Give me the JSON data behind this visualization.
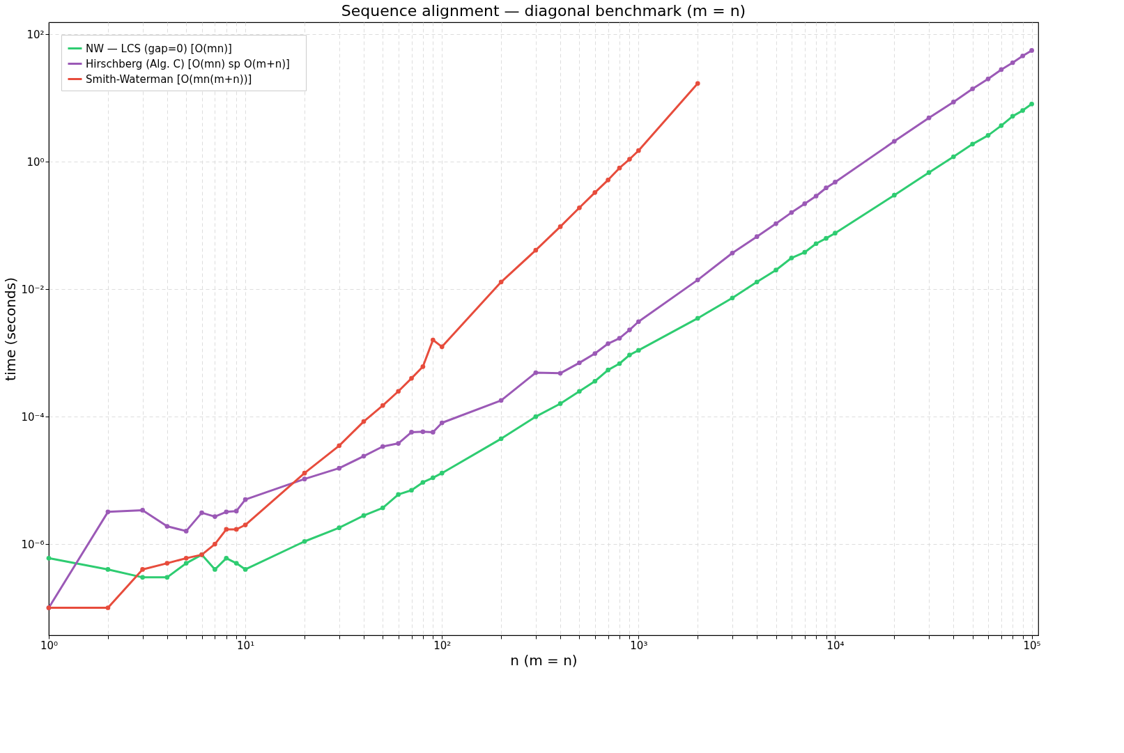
{
  "chart_data": {
    "type": "line",
    "title": "Sequence alignment — diagonal benchmark  (m = n)",
    "xlabel": "n  (m = n)",
    "ylabel": "time (seconds)",
    "log": "xy",
    "grid": true,
    "legend": "top left",
    "marker": "circle",
    "line_style": "solid",
    "xlim": [
      1,
      108000
    ],
    "ylim": [
      3.7e-08,
      155
    ],
    "xticks": [
      {
        "value": 1,
        "label": "10⁰"
      },
      {
        "value": 2,
        "label": null
      },
      {
        "value": 3,
        "label": null
      },
      {
        "value": 4,
        "label": null
      },
      {
        "value": 5,
        "label": null
      },
      {
        "value": 6,
        "label": null
      },
      {
        "value": 7,
        "label": null
      },
      {
        "value": 8,
        "label": null
      },
      {
        "value": 9,
        "label": null
      },
      {
        "value": 10,
        "label": "10¹"
      },
      {
        "value": 20,
        "label": null
      },
      {
        "value": 30,
        "label": null
      },
      {
        "value": 40,
        "label": null
      },
      {
        "value": 50,
        "label": null
      },
      {
        "value": 60,
        "label": null
      },
      {
        "value": 70,
        "label": null
      },
      {
        "value": 80,
        "label": null
      },
      {
        "value": 90,
        "label": null
      },
      {
        "value": 100,
        "label": "10²"
      },
      {
        "value": 200,
        "label": null
      },
      {
        "value": 300,
        "label": null
      },
      {
        "value": 400,
        "label": null
      },
      {
        "value": 500,
        "label": null
      },
      {
        "value": 600,
        "label": null
      },
      {
        "value": 700,
        "label": null
      },
      {
        "value": 800,
        "label": null
      },
      {
        "value": 900,
        "label": null
      },
      {
        "value": 1000,
        "label": "10³"
      },
      {
        "value": 2000,
        "label": null
      },
      {
        "value": 3000,
        "label": null
      },
      {
        "value": 4000,
        "label": null
      },
      {
        "value": 5000,
        "label": null
      },
      {
        "value": 6000,
        "label": null
      },
      {
        "value": 7000,
        "label": null
      },
      {
        "value": 8000,
        "label": null
      },
      {
        "value": 9000,
        "label": null
      },
      {
        "value": 10000,
        "label": "10⁴"
      },
      {
        "value": 20000,
        "label": null
      },
      {
        "value": 30000,
        "label": null
      },
      {
        "value": 40000,
        "label": null
      },
      {
        "value": 50000,
        "label": null
      },
      {
        "value": 60000,
        "label": null
      },
      {
        "value": 70000,
        "label": null
      },
      {
        "value": 80000,
        "label": null
      },
      {
        "value": 90000,
        "label": null
      },
      {
        "value": 100000,
        "label": "10⁵"
      }
    ],
    "yticks": [
      {
        "value": 1e-06,
        "label": "10⁻⁶"
      },
      {
        "value": 0.0001,
        "label": "10⁻⁴"
      },
      {
        "value": 0.01,
        "label": "10⁻²"
      },
      {
        "value": 1,
        "label": "10⁰"
      },
      {
        "value": 100,
        "label": "10²"
      }
    ],
    "x": [
      1,
      2,
      3,
      4,
      5,
      6,
      7,
      8,
      9,
      10,
      20,
      30,
      40,
      50,
      60,
      70,
      80,
      90,
      100,
      200,
      300,
      400,
      500,
      600,
      700,
      800,
      900,
      1000,
      2000,
      3000,
      4000,
      5000,
      6000,
      7000,
      8000,
      9000,
      10000,
      20000,
      30000,
      40000,
      50000,
      60000,
      70000,
      80000,
      90000,
      100000
    ],
    "series": [
      {
        "name": "NW — LCS  (gap=0)  [O(mn)]",
        "color": "#2ecc71",
        "values": [
          6e-07,
          4e-07,
          3e-07,
          3e-07,
          5e-07,
          6.8e-07,
          4e-07,
          6e-07,
          5e-07,
          4e-07,
          1.1e-06,
          1.8e-06,
          2.8e-06,
          3.7e-06,
          6e-06,
          7e-06,
          9.3e-06,
          1.1e-05,
          1.3e-05,
          4.5e-05,
          0.0001,
          0.00016,
          0.00025,
          0.00036,
          0.00054,
          0.00068,
          0.00093,
          0.0011,
          0.0035,
          0.0073,
          0.013,
          0.02,
          0.031,
          0.038,
          0.052,
          0.063,
          0.076,
          0.3,
          0.68,
          1.2,
          1.9,
          2.6,
          3.7,
          5.2,
          6.4,
          8.1
        ]
      },
      {
        "name": "Hirschberg  (Alg. C)  [O(mn)  sp O(m+n)]",
        "color": "#9b59b6",
        "values": [
          1e-07,
          3.2e-06,
          3.4e-06,
          1.9e-06,
          1.6e-06,
          3.1e-06,
          2.7e-06,
          3.2e-06,
          3.3e-06,
          5e-06,
          1.05e-05,
          1.55e-05,
          2.4e-05,
          3.4e-05,
          3.8e-05,
          5.7e-05,
          5.8e-05,
          5.7e-05,
          8e-05,
          0.00018,
          0.00049,
          0.00048,
          0.0007,
          0.00098,
          0.0014,
          0.0017,
          0.0023,
          0.0031,
          0.014,
          0.037,
          0.067,
          0.107,
          0.16,
          0.22,
          0.29,
          0.39,
          0.48,
          2.1,
          4.9,
          8.7,
          14,
          20,
          28,
          36,
          46,
          56
        ]
      },
      {
        "name": "Smith-Waterman  [O(mn(m+n))]",
        "color": "#e74c3c",
        "x": [
          1,
          2,
          3,
          4,
          5,
          6,
          7,
          8,
          9,
          10,
          20,
          30,
          40,
          50,
          60,
          70,
          80,
          90,
          100,
          200,
          300,
          400,
          500,
          600,
          700,
          800,
          900,
          1000,
          2000
        ],
        "values": [
          1e-07,
          1e-07,
          4e-07,
          5e-07,
          6e-07,
          6.8e-07,
          1e-06,
          1.7e-06,
          1.7e-06,
          2e-06,
          1.3e-05,
          3.5e-05,
          8.4e-05,
          0.00015,
          0.00025,
          0.0004,
          0.00061,
          0.0016,
          0.00125,
          0.013,
          0.041,
          0.096,
          0.19,
          0.33,
          0.52,
          0.8,
          1.1,
          1.5,
          17
        ]
      }
    ]
  }
}
